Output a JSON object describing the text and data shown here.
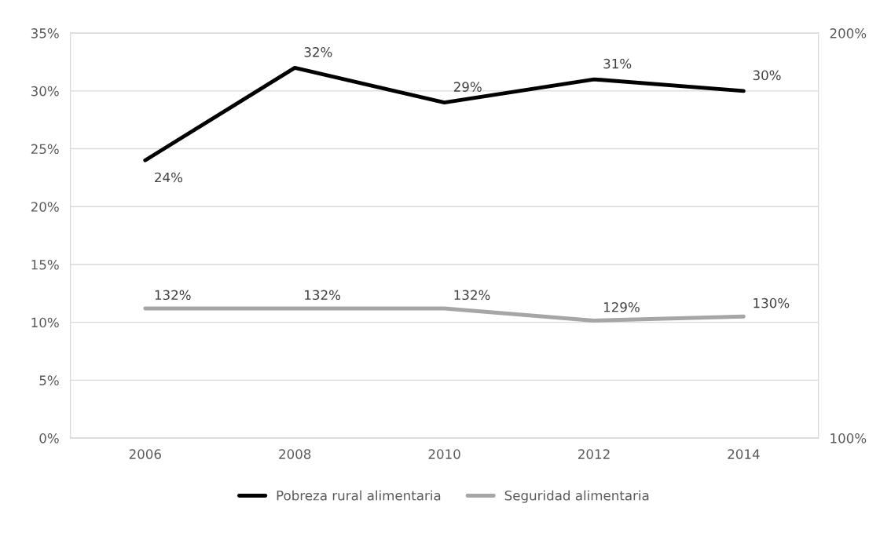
{
  "chart_data": {
    "type": "line",
    "categories": [
      "2006",
      "2008",
      "2010",
      "2012",
      "2014"
    ],
    "series": [
      {
        "name": "Pobreza rural alimentaria",
        "color": "#000000",
        "values": [
          24,
          32,
          29,
          31,
          30
        ],
        "value_labels": [
          "24%",
          "32%",
          "29%",
          "31%",
          "30%"
        ]
      },
      {
        "name": "Seguridad alimentaria",
        "color": "#a6a6a6",
        "axis": "y2",
        "values": [
          132,
          132,
          132,
          129,
          130
        ],
        "value_labels": [
          "132%",
          "132%",
          "132%",
          "129%",
          "130%"
        ]
      }
    ],
    "ylim": [
      0,
      35
    ],
    "yticks": [
      {
        "value": 0,
        "label": "0%"
      },
      {
        "value": 5,
        "label": "5%"
      },
      {
        "value": 10,
        "label": "10%"
      },
      {
        "value": 15,
        "label": "15%"
      },
      {
        "value": 20,
        "label": "20%"
      },
      {
        "value": 25,
        "label": "25%"
      },
      {
        "value": 30,
        "label": "30%"
      },
      {
        "value": 35,
        "label": "35%"
      }
    ],
    "y2lim": [
      100,
      200
    ],
    "y2ticks": [
      {
        "value": 100,
        "label": "100%"
      },
      {
        "value": 200,
        "label": "200%"
      }
    ],
    "grid": "y",
    "legend": "bottom",
    "marker": "none",
    "line_style": "solid"
  }
}
